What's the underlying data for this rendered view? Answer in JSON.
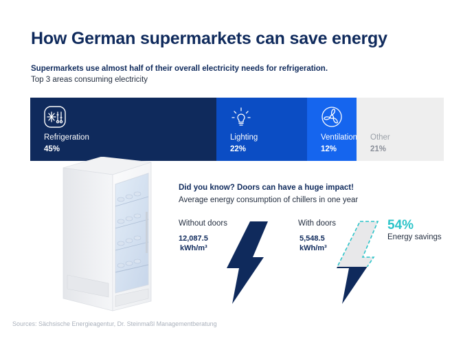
{
  "title": "How German supermarkets can save energy",
  "subtitle": "Supermarkets use almost half of their overall electricity needs for refrigeration.",
  "subtitle2": "Top 3 areas consuming electricity",
  "colors": {
    "navy": "#0f2a5c",
    "blue": "#0b4dc4",
    "bright_blue": "#1565ee",
    "grey": "#eeeeee",
    "teal": "#2cc4c9"
  },
  "chart_data": [
    {
      "type": "bar",
      "stacked": true,
      "orientation": "horizontal",
      "categories": [
        "Refrigeration",
        "Lighting",
        "Ventilation",
        "Other"
      ],
      "values": [
        45,
        22,
        12,
        21
      ],
      "value_labels": [
        "45%",
        "22%",
        "12%",
        "21%"
      ],
      "icons": [
        "snowflake-thermometer-icon",
        "lightbulb-icon",
        "fan-icon",
        ""
      ],
      "colors": [
        "#0f2a5c",
        "#0b4dc4",
        "#1565ee",
        "#eeeeee"
      ],
      "title": "Top 3 areas consuming electricity"
    },
    {
      "type": "bar",
      "title": "Average energy consumption of chillers in one year",
      "categories": [
        "Without doors",
        "With doors"
      ],
      "values": [
        12087.5,
        5548.5
      ],
      "value_labels": [
        "12,087.5\nkWh/m³",
        "5,548.5\nkWh/m³"
      ],
      "unit": "kWh/m³",
      "highlight": {
        "value": "54%",
        "label": "Energy savings"
      }
    }
  ],
  "did_you_know": {
    "heading": "Did you know? Doors can have a huge impact!",
    "subheading": "Average energy consumption of chillers in one year",
    "without": {
      "label": "Without doors",
      "value_line1": "12,087.5",
      "value_line2": "kWh/m³"
    },
    "with": {
      "label": "With doors",
      "value_line1": "5,548.5",
      "value_line2": "kWh/m³"
    },
    "savings_pct": "54%",
    "savings_label": "Energy savings"
  },
  "source": "Sources: Sächsische Energieagentur, Dr. Steinmaßl Managementberatung"
}
